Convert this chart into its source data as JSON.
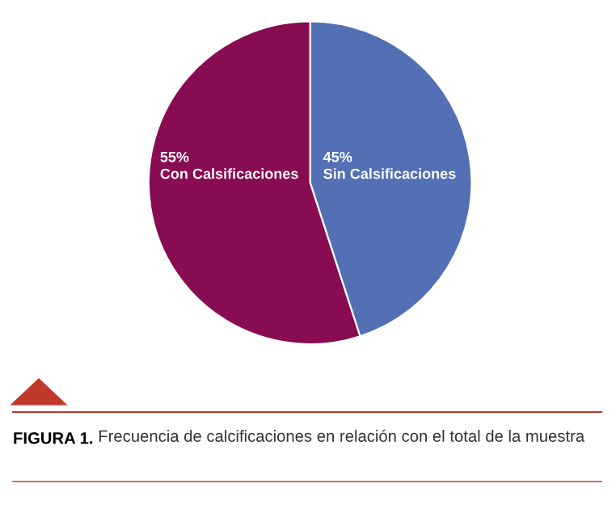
{
  "chart_data": {
    "type": "pie",
    "categories": [
      "Sin Calsificaciones",
      "Con Calsificaciones"
    ],
    "values": [
      45,
      55
    ],
    "colors": [
      "#5470b4",
      "#870c52"
    ],
    "value_labels": [
      "45%",
      "55%"
    ],
    "annotations": [
      "FIGURA 1.",
      "Frecuencia de calcificaciones en relación con el total de la muestra"
    ]
  }
}
